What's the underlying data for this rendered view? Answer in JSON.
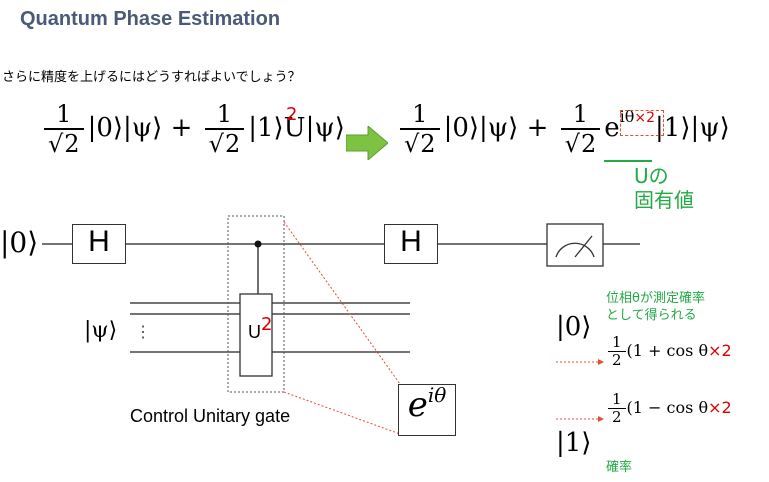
{
  "title": "Quantum Phase Estimation",
  "question": "さらに精度を上げるにはどうすればよいでしょう？",
  "equation_left": {
    "term1_num": "1",
    "term1_den": "2",
    "term1_state": "|0⟩|ψ⟩",
    "plus": "+",
    "term2_num": "1",
    "term2_den": "2",
    "term2_state": "|1⟩U|ψ⟩",
    "exponent_red": "2"
  },
  "equation_right": {
    "term1_num": "1",
    "term1_den": "2",
    "term1_state": "|0⟩|ψ⟩",
    "plus": "+",
    "term2_num": "1",
    "term2_den": "2",
    "term2_e": "e",
    "term2_exp": "iθ",
    "term2_exp_red": "×2",
    "term2_state": "|1⟩|ψ⟩"
  },
  "eigen_label_line1": "Uの",
  "eigen_label_line2": "固有値",
  "circuit": {
    "input_ket0": "|0⟩",
    "input_psi": "|ψ⟩",
    "h_gate_1": "H",
    "h_gate_2": "H",
    "u_gate": "U",
    "u_gate_exp": "2",
    "phase_box_e": "e",
    "phase_box_exp": "iθ",
    "control_label": "Control Unitary gate",
    "dots": "⋮"
  },
  "outcomes": {
    "note_line1": "位相θが測定確率",
    "note_line2": "として得られる",
    "ket0": "|0⟩",
    "ket1": "|1⟩",
    "prob0_num": "1",
    "prob0_den": "2",
    "prob0_expr": "(1 + cos θ",
    "prob1_num": "1",
    "prob1_den": "2",
    "prob1_expr": "(1 − cos θ",
    "times2": "×2",
    "prob_label": "確率"
  },
  "colors": {
    "title": "#4a5a78",
    "green_text": "#22aa44",
    "red_text": "#dd0000",
    "arrow_fill": "#7dc242",
    "dotted_red": "#e05030",
    "wire": "#222222"
  }
}
